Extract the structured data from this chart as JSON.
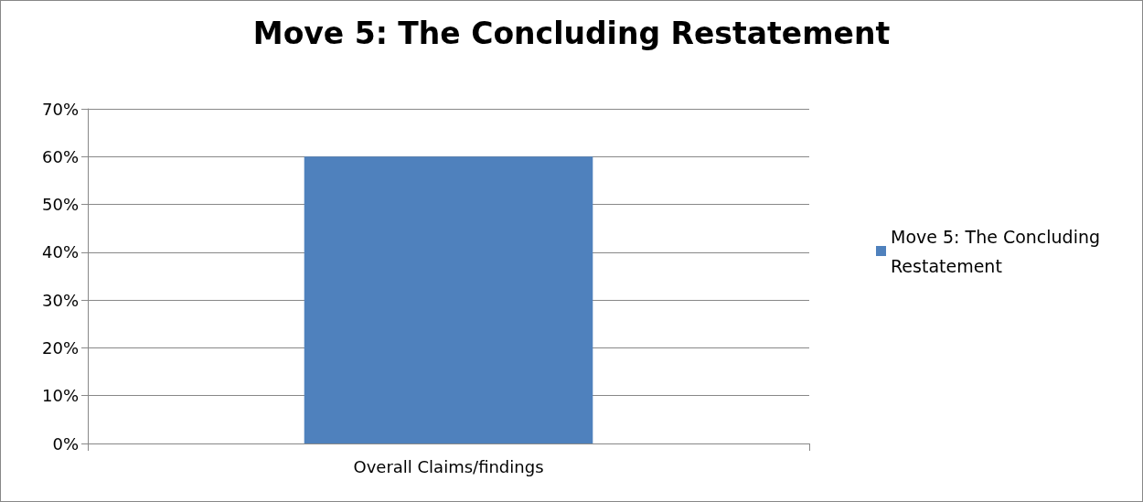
{
  "chart_data": {
    "type": "bar",
    "title": "Move 5: The Concluding Restatement",
    "categories": [
      "Overall Claims/findings"
    ],
    "series": [
      {
        "name": "Move 5: The Concluding Restatement",
        "color": "#4f81bd",
        "values": [
          60
        ]
      }
    ],
    "ylim": [
      0,
      70
    ],
    "yticks": [
      {
        "value": 0,
        "label": "0%"
      },
      {
        "value": 10,
        "label": "10%"
      },
      {
        "value": 20,
        "label": "20%"
      },
      {
        "value": 30,
        "label": "30%"
      },
      {
        "value": 40,
        "label": "40%"
      },
      {
        "value": 50,
        "label": "50%"
      },
      {
        "value": 60,
        "label": "60%"
      },
      {
        "value": 70,
        "label": "70%"
      }
    ],
    "grid": "y",
    "legend": "right"
  }
}
